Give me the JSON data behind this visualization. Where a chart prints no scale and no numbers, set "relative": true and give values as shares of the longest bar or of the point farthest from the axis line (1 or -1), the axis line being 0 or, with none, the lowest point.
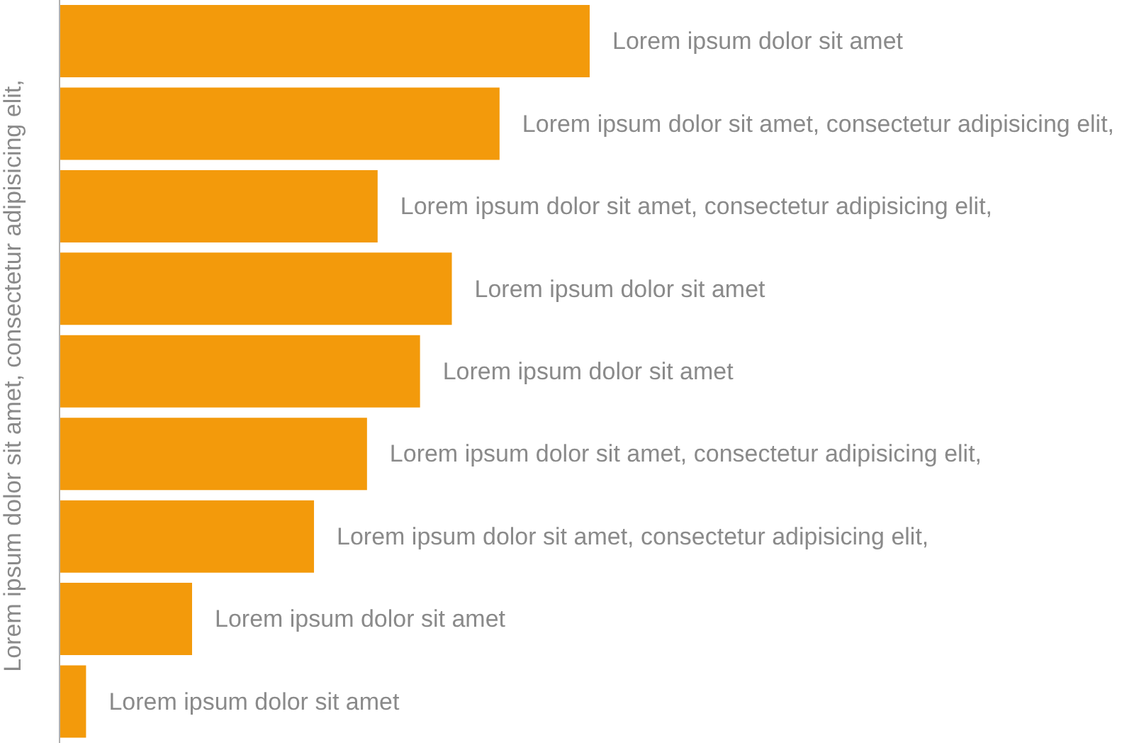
{
  "chart_data": {
    "type": "bar",
    "orientation": "horizontal",
    "relative": true,
    "ylabel": "Lorem ipsum dolor sit amet, consectetur adipisicing elit,",
    "categories": [
      null,
      null,
      null,
      null,
      null,
      null,
      null,
      null,
      null
    ],
    "values": [
      1,
      0.83,
      0.6,
      0.74,
      0.68,
      0.58,
      0.48,
      0.25,
      0.05
    ],
    "annotations": [
      {
        "text": "Lorem ipsum dolor sit amet",
        "x": 1
      },
      {
        "text": "Lorem ipsum dolor sit amet, consectetur adipisicing elit,",
        "x": 0.83
      },
      {
        "text": "Lorem ipsum dolor sit amet, consectetur adipisicing elit,",
        "x": 0.6
      },
      {
        "text": "Lorem ipsum dolor sit amet",
        "x": 0.74
      },
      {
        "text": "Lorem ipsum dolor sit amet",
        "x": 0.68
      },
      {
        "text": "Lorem ipsum dolor sit amet, consectetur adipisicing elit,",
        "x": 0.58
      },
      {
        "text": "Lorem ipsum dolor sit amet, consectetur adipisicing elit,",
        "x": 0.48
      },
      {
        "text": "Lorem ipsum dolor sit amet",
        "x": 0.25
      },
      {
        "text": "Lorem ipsum dolor sit amet",
        "x": 0.05
      }
    ],
    "color": "#f39a0b"
  }
}
